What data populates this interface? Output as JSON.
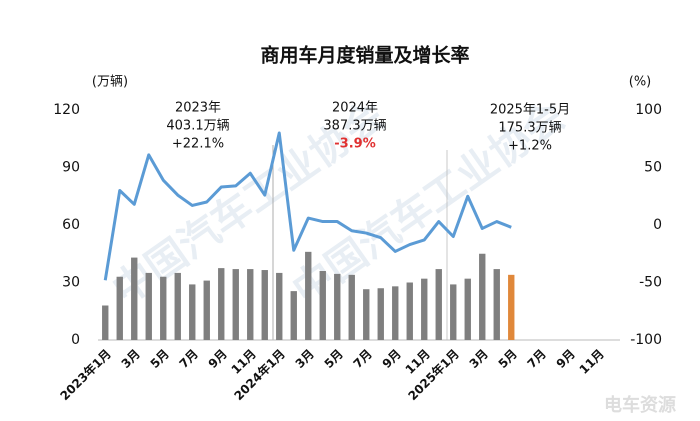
{
  "chart_data": {
    "type": "bar-line",
    "title": "商用车月度销量及增长率",
    "ylabel": "(万辆)",
    "y2label": "(%)",
    "watermark": "中国汽车工业协会",
    "source_mark": "电车资源",
    "categories": [
      "2023年1月",
      null,
      "3月",
      null,
      "5月",
      null,
      "7月",
      null,
      "9月",
      null,
      "11月",
      null,
      "2024年1月",
      null,
      "3月",
      null,
      "5月",
      null,
      "7月",
      null,
      "9月",
      null,
      "11月",
      null,
      "2025年1月",
      null,
      "3月",
      null,
      "5月",
      null,
      "7月",
      null,
      "9月",
      null,
      "11月",
      null
    ],
    "series": [
      {
        "type": "bar",
        "color": "#7f7f7f",
        "highlight_color": "#e0883a",
        "values": [
          18,
          33,
          43,
          35,
          33,
          35,
          29,
          31,
          37.5,
          37,
          37,
          36.5,
          35,
          25.5,
          46,
          36,
          34.5,
          34,
          26.5,
          27,
          28,
          30,
          32,
          37,
          29,
          32,
          45,
          37,
          34,
          null,
          null,
          null,
          null,
          null,
          null,
          null
        ]
      },
      {
        "type": "line",
        "axis": "y2",
        "color": "#5b9bd5",
        "values": [
          -48,
          30,
          18,
          61,
          39,
          26,
          17,
          20,
          33,
          34,
          45,
          26,
          80,
          -22,
          6,
          3,
          3,
          -5,
          -7,
          -11,
          -23,
          -17,
          -13,
          3,
          -10,
          25,
          -3,
          3,
          -2,
          null,
          null,
          null,
          null,
          null,
          null,
          null
        ]
      }
    ],
    "highlight_index": 28,
    "ylim": [
      0,
      120
    ],
    "yticks": [
      0,
      30,
      60,
      90,
      120
    ],
    "y2lim": [
      -100,
      100
    ],
    "y2ticks": [
      -100,
      -50,
      0,
      50,
      100
    ],
    "annotations": [
      {
        "lines": [
          "2023年",
          "403.1万辆",
          "+22.1%"
        ],
        "color": "#111"
      },
      {
        "lines": [
          "2024年",
          "387.3万辆",
          "-3.9%"
        ],
        "color": "#e03030"
      },
      {
        "lines": [
          "2025年1-5月",
          "175.3万辆",
          "+1.2%"
        ],
        "color": "#111"
      }
    ]
  }
}
